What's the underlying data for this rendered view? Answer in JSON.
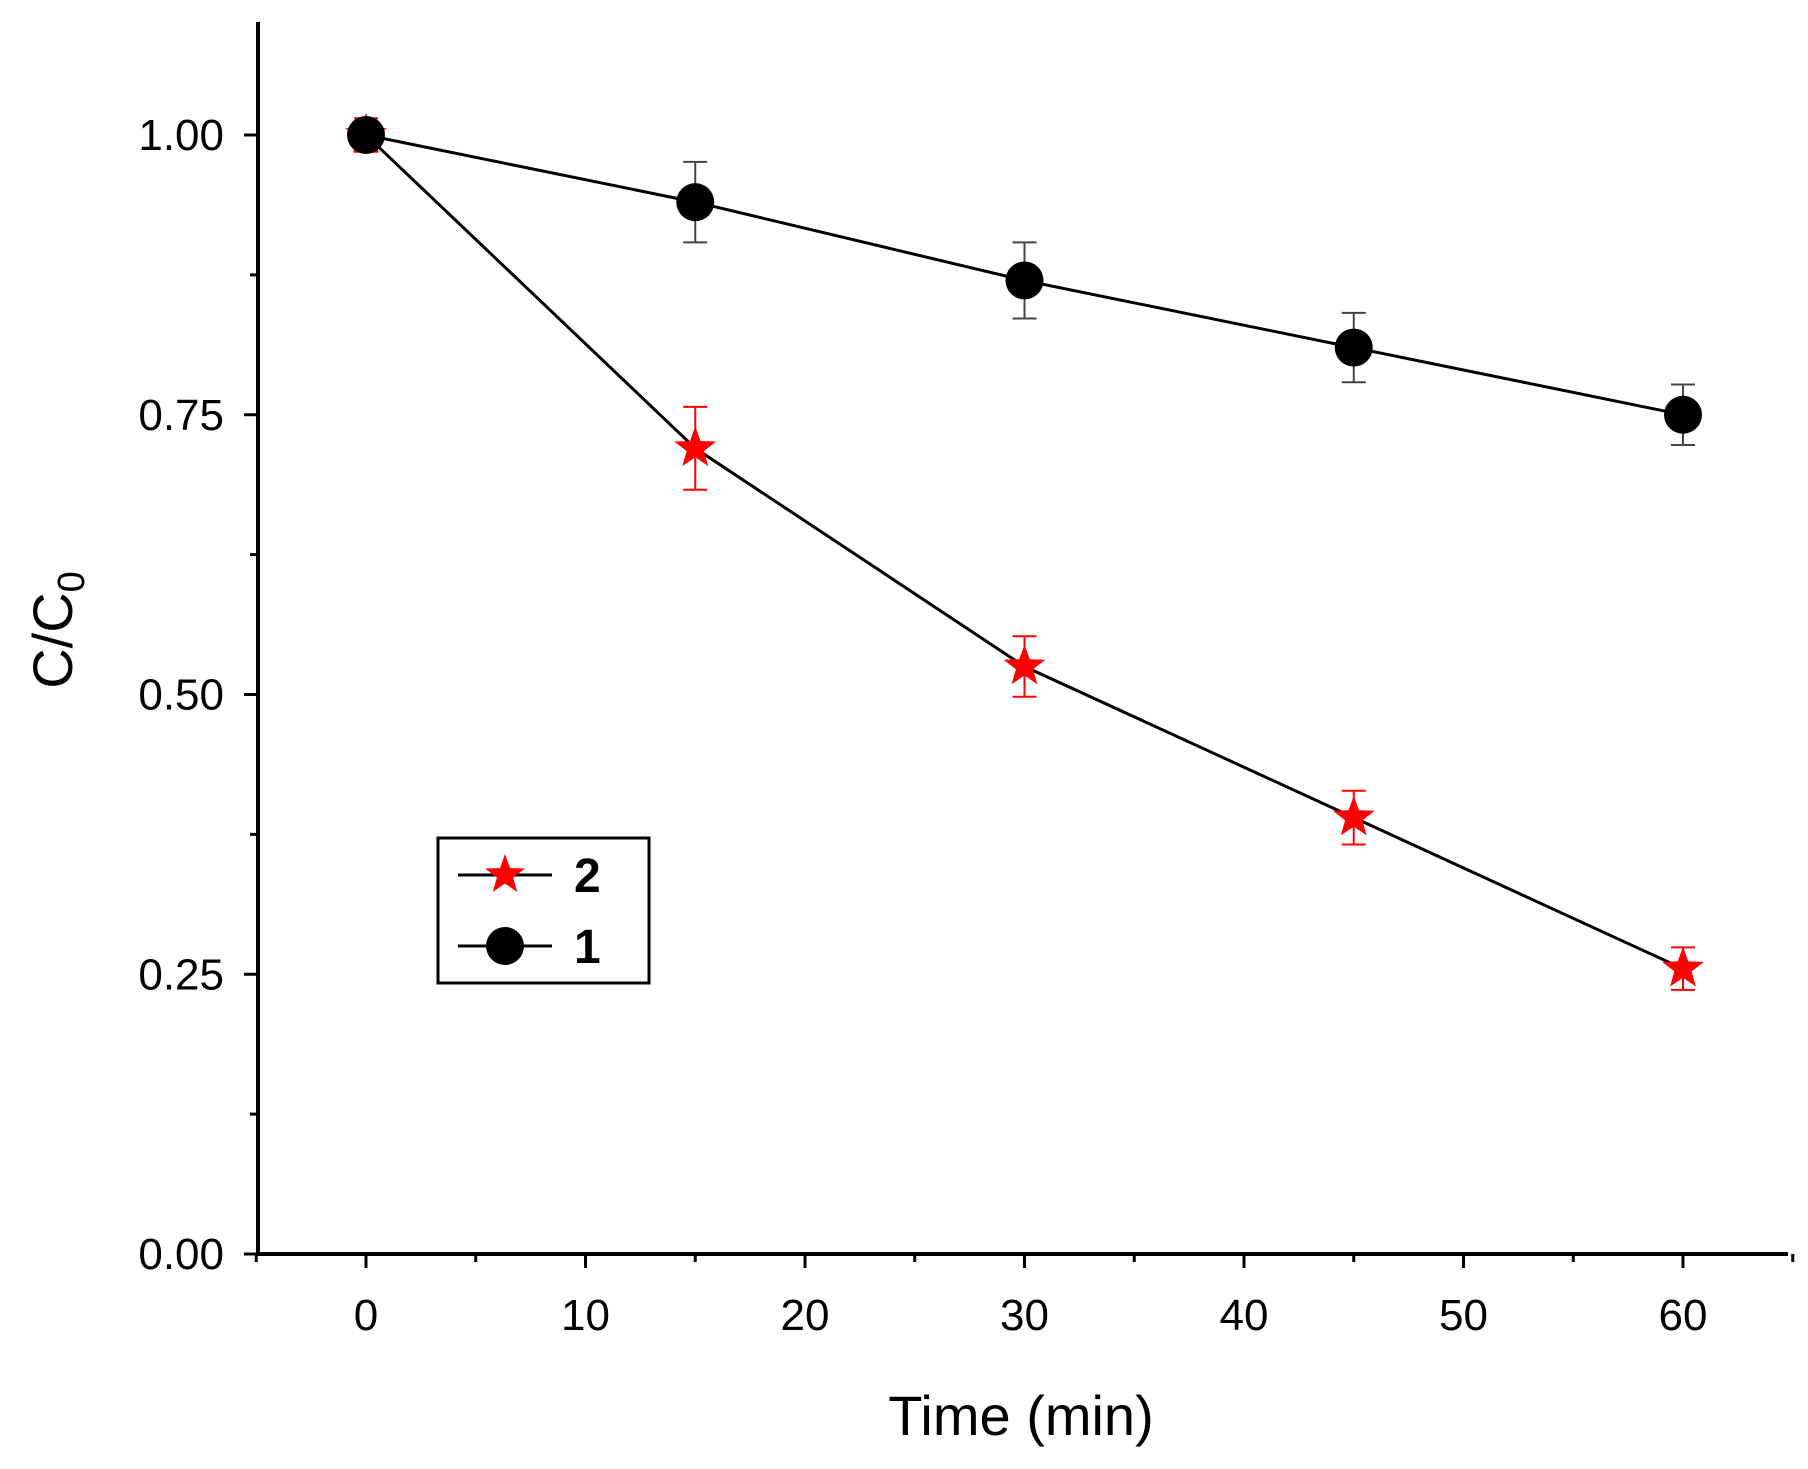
{
  "chart_data": {
    "type": "line",
    "title": "",
    "xlabel": "Time (min)",
    "ylabel_main": "C/C",
    "ylabel_sub": "0",
    "xlim": [
      -5,
      65
    ],
    "ylim": [
      0,
      1.1
    ],
    "x_ticks": [
      0,
      10,
      20,
      30,
      40,
      50,
      60
    ],
    "x_tick_labels": [
      "0",
      "10",
      "20",
      "30",
      "40",
      "50",
      "60"
    ],
    "y_ticks": [
      0,
      0.25,
      0.5,
      0.75,
      1.0
    ],
    "y_tick_labels": [
      "0.00",
      "0.25",
      "0.50",
      "0.75",
      "1.00"
    ],
    "grid": false,
    "legend_position": "center-left",
    "series": [
      {
        "name": "2",
        "marker": "star",
        "color": "#ff0000",
        "x": [
          0,
          15,
          30,
          45,
          60
        ],
        "values": [
          1.0,
          0.72,
          0.525,
          0.39,
          0.255
        ],
        "errors": [
          0.015,
          0.037,
          0.027,
          0.024,
          0.019
        ]
      },
      {
        "name": "1",
        "marker": "circle",
        "color": "#000000",
        "x": [
          0,
          15,
          30,
          45,
          60
        ],
        "values": [
          1.0,
          0.94,
          0.87,
          0.81,
          0.75
        ],
        "errors": [
          0.012,
          0.036,
          0.034,
          0.031,
          0.027
        ]
      }
    ]
  }
}
